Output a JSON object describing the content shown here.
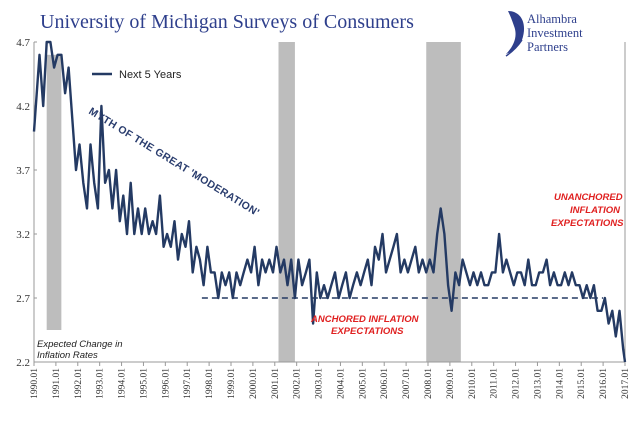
{
  "title": "University of Michigan Surveys of Consumers",
  "logo": {
    "lines": [
      "Alhambra",
      "Investment",
      "Partners"
    ],
    "icon": "alhambra-swoosh-logo"
  },
  "colors": {
    "series": "#243a63",
    "recession": "#bdbdbd",
    "title": "#2e3f8c",
    "red_note": "#e02020"
  },
  "annotations": {
    "great_moderation": "MYTH OF THE GREAT 'MODERATION'",
    "anchored": [
      "ANCHORED INFLATION",
      "EXPECTATIONS"
    ],
    "unanchored": [
      "UNANCHORED",
      "INFLATION",
      "EXPECTATIONS"
    ],
    "expected_change": [
      "Expected Change in",
      "Inflation Rates"
    ]
  },
  "chart_data": {
    "type": "line",
    "title": "University of Michigan Surveys of Consumers",
    "xlabel": "",
    "ylabel": "",
    "ylim": [
      2.2,
      4.7
    ],
    "yticks": [
      "2.2",
      "2.7",
      "3.2",
      "3.7",
      "4.2",
      "4.7"
    ],
    "xticks": [
      "1990.01",
      "1991.01",
      "1992.01",
      "1993.01",
      "1994.01",
      "1995.01",
      "1996.01",
      "1997.01",
      "1998.01",
      "1999.01",
      "2000.01",
      "2001.01",
      "2002.01",
      "2003.01",
      "2004.01",
      "2005.01",
      "2006.01",
      "2007.01",
      "2008.01",
      "2009.01",
      "2010.01",
      "2011.01",
      "2012.01",
      "2013.01",
      "2014.01",
      "2015.01",
      "2016.01",
      "2017.01"
    ],
    "legend": {
      "position": "top-left",
      "entries": [
        "Next 5 Years"
      ]
    },
    "grid": false,
    "recession_shading": [
      {
        "start": 1990.58,
        "end": 1991.25
      },
      {
        "start": 2001.17,
        "end": 2001.92
      },
      {
        "start": 2007.92,
        "end": 2009.5
      }
    ],
    "reference_line": {
      "value": 2.7,
      "x_start": 1997.67,
      "x_end": 2016.0,
      "style": "dashed"
    },
    "series": [
      {
        "name": "Next 5 Years",
        "points": [
          [
            1990.0,
            4.0
          ],
          [
            1990.25,
            4.6
          ],
          [
            1990.42,
            4.2
          ],
          [
            1990.58,
            4.8
          ],
          [
            1990.75,
            4.7
          ],
          [
            1990.92,
            4.5
          ],
          [
            1991.08,
            4.6
          ],
          [
            1991.25,
            4.6
          ],
          [
            1991.42,
            4.3
          ],
          [
            1991.58,
            4.5
          ],
          [
            1991.75,
            4.1
          ],
          [
            1991.92,
            3.7
          ],
          [
            1992.08,
            3.9
          ],
          [
            1992.25,
            3.6
          ],
          [
            1992.42,
            3.4
          ],
          [
            1992.58,
            3.9
          ],
          [
            1992.75,
            3.6
          ],
          [
            1992.92,
            3.4
          ],
          [
            1993.08,
            4.2
          ],
          [
            1993.25,
            3.6
          ],
          [
            1993.42,
            3.7
          ],
          [
            1993.58,
            3.4
          ],
          [
            1993.75,
            3.7
          ],
          [
            1993.92,
            3.3
          ],
          [
            1994.08,
            3.5
          ],
          [
            1994.25,
            3.2
          ],
          [
            1994.42,
            3.6
          ],
          [
            1994.58,
            3.2
          ],
          [
            1994.75,
            3.4
          ],
          [
            1994.92,
            3.2
          ],
          [
            1995.08,
            3.4
          ],
          [
            1995.25,
            3.2
          ],
          [
            1995.42,
            3.3
          ],
          [
            1995.58,
            3.2
          ],
          [
            1995.75,
            3.5
          ],
          [
            1995.92,
            3.1
          ],
          [
            1996.08,
            3.2
          ],
          [
            1996.25,
            3.1
          ],
          [
            1996.42,
            3.3
          ],
          [
            1996.58,
            3.0
          ],
          [
            1996.75,
            3.2
          ],
          [
            1996.92,
            3.1
          ],
          [
            1997.08,
            3.3
          ],
          [
            1997.25,
            2.9
          ],
          [
            1997.42,
            3.1
          ],
          [
            1997.58,
            3.0
          ],
          [
            1997.75,
            2.8
          ],
          [
            1997.92,
            3.1
          ],
          [
            1998.08,
            2.9
          ],
          [
            1998.25,
            2.9
          ],
          [
            1998.42,
            2.7
          ],
          [
            1998.58,
            2.9
          ],
          [
            1998.75,
            2.8
          ],
          [
            1998.92,
            2.9
          ],
          [
            1999.08,
            2.7
          ],
          [
            1999.25,
            2.9
          ],
          [
            1999.42,
            2.8
          ],
          [
            1999.58,
            2.9
          ],
          [
            1999.75,
            3.0
          ],
          [
            1999.92,
            2.9
          ],
          [
            2000.08,
            3.1
          ],
          [
            2000.25,
            2.8
          ],
          [
            2000.42,
            3.0
          ],
          [
            2000.58,
            2.9
          ],
          [
            2000.75,
            3.0
          ],
          [
            2000.92,
            2.9
          ],
          [
            2001.08,
            3.1
          ],
          [
            2001.25,
            2.9
          ],
          [
            2001.42,
            3.0
          ],
          [
            2001.58,
            2.8
          ],
          [
            2001.75,
            3.0
          ],
          [
            2001.92,
            2.7
          ],
          [
            2002.08,
            3.0
          ],
          [
            2002.25,
            2.8
          ],
          [
            2002.42,
            2.9
          ],
          [
            2002.58,
            3.0
          ],
          [
            2002.75,
            2.5
          ],
          [
            2002.92,
            2.9
          ],
          [
            2003.08,
            2.7
          ],
          [
            2003.25,
            2.8
          ],
          [
            2003.42,
            2.7
          ],
          [
            2003.58,
            2.8
          ],
          [
            2003.75,
            2.9
          ],
          [
            2003.92,
            2.7
          ],
          [
            2004.08,
            2.8
          ],
          [
            2004.25,
            2.9
          ],
          [
            2004.42,
            2.7
          ],
          [
            2004.58,
            2.8
          ],
          [
            2004.75,
            2.9
          ],
          [
            2004.92,
            2.8
          ],
          [
            2005.08,
            2.9
          ],
          [
            2005.25,
            3.0
          ],
          [
            2005.42,
            2.8
          ],
          [
            2005.58,
            3.1
          ],
          [
            2005.75,
            3.0
          ],
          [
            2005.92,
            3.2
          ],
          [
            2006.08,
            2.9
          ],
          [
            2006.25,
            3.0
          ],
          [
            2006.42,
            3.1
          ],
          [
            2006.58,
            3.2
          ],
          [
            2006.75,
            2.9
          ],
          [
            2006.92,
            3.0
          ],
          [
            2007.08,
            2.9
          ],
          [
            2007.25,
            3.0
          ],
          [
            2007.42,
            3.1
          ],
          [
            2007.58,
            2.9
          ],
          [
            2007.75,
            3.0
          ],
          [
            2007.92,
            2.9
          ],
          [
            2008.08,
            3.0
          ],
          [
            2008.25,
            2.9
          ],
          [
            2008.42,
            3.2
          ],
          [
            2008.58,
            3.4
          ],
          [
            2008.75,
            3.2
          ],
          [
            2008.92,
            2.8
          ],
          [
            2009.08,
            2.6
          ],
          [
            2009.25,
            2.9
          ],
          [
            2009.42,
            2.8
          ],
          [
            2009.58,
            3.0
          ],
          [
            2009.75,
            2.9
          ],
          [
            2009.92,
            2.8
          ],
          [
            2010.08,
            2.9
          ],
          [
            2010.25,
            2.8
          ],
          [
            2010.42,
            2.9
          ],
          [
            2010.58,
            2.8
          ],
          [
            2010.75,
            2.8
          ],
          [
            2010.92,
            2.9
          ],
          [
            2011.08,
            2.9
          ],
          [
            2011.25,
            3.2
          ],
          [
            2011.42,
            2.9
          ],
          [
            2011.58,
            3.0
          ],
          [
            2011.75,
            2.9
          ],
          [
            2011.92,
            2.8
          ],
          [
            2012.08,
            2.9
          ],
          [
            2012.25,
            2.9
          ],
          [
            2012.42,
            2.8
          ],
          [
            2012.58,
            3.0
          ],
          [
            2012.75,
            2.8
          ],
          [
            2012.92,
            2.8
          ],
          [
            2013.08,
            2.9
          ],
          [
            2013.25,
            2.9
          ],
          [
            2013.42,
            3.0
          ],
          [
            2013.58,
            2.8
          ],
          [
            2013.75,
            2.9
          ],
          [
            2013.92,
            2.8
          ],
          [
            2014.08,
            2.8
          ],
          [
            2014.25,
            2.9
          ],
          [
            2014.42,
            2.8
          ],
          [
            2014.58,
            2.9
          ],
          [
            2014.75,
            2.8
          ],
          [
            2014.92,
            2.8
          ],
          [
            2015.08,
            2.7
          ],
          [
            2015.25,
            2.8
          ],
          [
            2015.42,
            2.7
          ],
          [
            2015.58,
            2.8
          ],
          [
            2015.75,
            2.6
          ],
          [
            2015.92,
            2.6
          ],
          [
            2016.08,
            2.7
          ],
          [
            2016.25,
            2.5
          ],
          [
            2016.42,
            2.6
          ],
          [
            2016.58,
            2.4
          ],
          [
            2016.75,
            2.6
          ],
          [
            2016.92,
            2.3
          ],
          [
            2017.0,
            2.2
          ]
        ]
      }
    ]
  }
}
